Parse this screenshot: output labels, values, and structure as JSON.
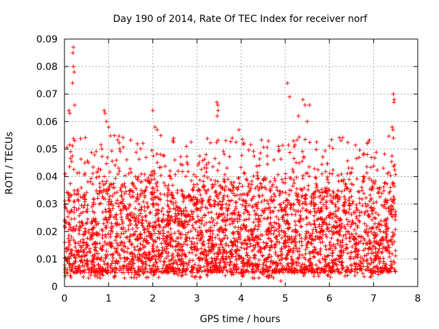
{
  "chart_data": {
    "type": "scatter",
    "title": "Day 190 of 2014, Rate Of TEC Index for receiver norf",
    "xlabel": "GPS time / hours",
    "ylabel": "ROTI / TECUs",
    "xlim": [
      0,
      8
    ],
    "ylim": [
      0,
      0.09
    ],
    "xticks": [
      "0",
      "1",
      "2",
      "3",
      "4",
      "5",
      "6",
      "7",
      "8"
    ],
    "yticks": [
      "0",
      "0.01",
      "0.02",
      "0.03",
      "0.04",
      "0.05",
      "0.06",
      "0.07",
      "0.08",
      "0.09"
    ],
    "grid": true,
    "marker": "+",
    "color": "#ff0000",
    "time_range_hours": [
      0,
      7.5
    ],
    "bulk_range": [
      0.005,
      0.035
    ],
    "notable_points": [
      {
        "x": 0.2,
        "y": 0.087
      },
      {
        "x": 0.19,
        "y": 0.085
      },
      {
        "x": 0.2,
        "y": 0.08
      },
      {
        "x": 0.22,
        "y": 0.078
      },
      {
        "x": 0.18,
        "y": 0.074
      },
      {
        "x": 0.23,
        "y": 0.066
      },
      {
        "x": 0.1,
        "y": 0.064
      },
      {
        "x": 0.12,
        "y": 0.063
      },
      {
        "x": 0.9,
        "y": 0.064
      },
      {
        "x": 0.92,
        "y": 0.063
      },
      {
        "x": 0.95,
        "y": 0.06
      },
      {
        "x": 1.0,
        "y": 0.058
      },
      {
        "x": 2.0,
        "y": 0.064
      },
      {
        "x": 2.05,
        "y": 0.058
      },
      {
        "x": 2.1,
        "y": 0.057
      },
      {
        "x": 3.45,
        "y": 0.067
      },
      {
        "x": 3.47,
        "y": 0.066
      },
      {
        "x": 3.48,
        "y": 0.064
      },
      {
        "x": 3.46,
        "y": 0.062
      },
      {
        "x": 3.95,
        "y": 0.057
      },
      {
        "x": 5.05,
        "y": 0.074
      },
      {
        "x": 5.1,
        "y": 0.069
      },
      {
        "x": 5.4,
        "y": 0.068
      },
      {
        "x": 5.45,
        "y": 0.066
      },
      {
        "x": 5.55,
        "y": 0.066
      },
      {
        "x": 5.5,
        "y": 0.06
      },
      {
        "x": 5.3,
        "y": 0.062
      },
      {
        "x": 7.45,
        "y": 0.07
      },
      {
        "x": 7.47,
        "y": 0.068
      },
      {
        "x": 7.46,
        "y": 0.067
      },
      {
        "x": 7.42,
        "y": 0.058
      },
      {
        "x": 7.44,
        "y": 0.057
      },
      {
        "x": 4.95,
        "y": 0.005
      },
      {
        "x": 4.3,
        "y": 0.003
      },
      {
        "x": 4.9,
        "y": 0.002
      }
    ]
  }
}
